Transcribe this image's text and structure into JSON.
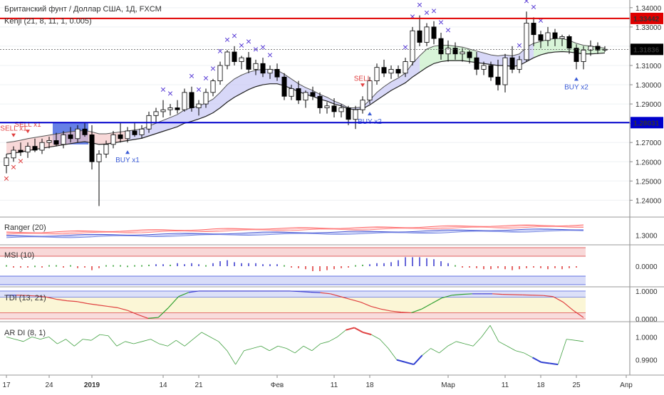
{
  "colors": {
    "up": "#ffffff",
    "down": "#000000",
    "resistance": "#e00000",
    "support": "#0000cc",
    "marker": "#5b3fd6",
    "sell": "#e04040",
    "buy": "#3a5bd6"
  },
  "chart_data": [
    {
      "type": "candlestick",
      "title": "Британский фунт / Доллар США, 1Д, FXCM",
      "indicator_label": "Kenji (21, 8, 11, 1, 0.005)",
      "ylim": [
        1.232,
        1.344
      ],
      "y_ticks": [
        "1.34000",
        "1.33000",
        "1.32000",
        "1.31000",
        "1.30000",
        "1.29000",
        "1.28000",
        "1.27000",
        "1.26000",
        "1.25000",
        "1.24000"
      ],
      "price_labels": [
        {
          "text": "1.33442",
          "value": 1.33442,
          "color": "#e00000"
        },
        {
          "text": "1.31836",
          "value": 1.31836,
          "color": "#000000"
        },
        {
          "text": "1.28031",
          "value": 1.28031,
          "color": "#0000cc"
        }
      ],
      "x_ticks": [
        {
          "label": "17",
          "index": 0
        },
        {
          "label": "24",
          "index": 6
        },
        {
          "label": "2019",
          "index": 12
        },
        {
          "label": "14",
          "index": 22
        },
        {
          "label": "21",
          "index": 27
        },
        {
          "label": "Фев",
          "index": 38
        },
        {
          "label": "11",
          "index": 46
        },
        {
          "label": "18",
          "index": 51
        },
        {
          "label": "Мар",
          "index": 62
        },
        {
          "label": "11",
          "index": 70
        },
        {
          "label": "18",
          "index": 75
        },
        {
          "label": "25",
          "index": 80
        },
        {
          "label": "Апр",
          "index": 87
        }
      ],
      "candles": [
        [
          1.258,
          1.264,
          1.254,
          1.262
        ],
        [
          1.262,
          1.268,
          1.26,
          1.266
        ],
        [
          1.266,
          1.27,
          1.263,
          1.265
        ],
        [
          1.265,
          1.27,
          1.262,
          1.268
        ],
        [
          1.268,
          1.272,
          1.265,
          1.266
        ],
        [
          1.266,
          1.272,
          1.264,
          1.27
        ],
        [
          1.27,
          1.273,
          1.267,
          1.271
        ],
        [
          1.271,
          1.275,
          1.268,
          1.269
        ],
        [
          1.269,
          1.276,
          1.267,
          1.274
        ],
        [
          1.274,
          1.278,
          1.27,
          1.272
        ],
        [
          1.272,
          1.279,
          1.27,
          1.277
        ],
        [
          1.277,
          1.28,
          1.273,
          1.274
        ],
        [
          1.274,
          1.279,
          1.256,
          1.26
        ],
        [
          1.26,
          1.266,
          1.237,
          1.264
        ],
        [
          1.264,
          1.271,
          1.262,
          1.269
        ],
        [
          1.269,
          1.276,
          1.267,
          1.274
        ],
        [
          1.274,
          1.28,
          1.27,
          1.272
        ],
        [
          1.272,
          1.278,
          1.27,
          1.276
        ],
        [
          1.276,
          1.28,
          1.273,
          1.274
        ],
        [
          1.274,
          1.279,
          1.272,
          1.277
        ],
        [
          1.277,
          1.286,
          1.275,
          1.284
        ],
        [
          1.284,
          1.288,
          1.28,
          1.286
        ],
        [
          1.286,
          1.292,
          1.283,
          1.287
        ],
        [
          1.287,
          1.29,
          1.284,
          1.288
        ],
        [
          1.288,
          1.292,
          1.285,
          1.287
        ],
        [
          1.287,
          1.298,
          1.286,
          1.296
        ],
        [
          1.296,
          1.299,
          1.286,
          1.288
        ],
        [
          1.288,
          1.292,
          1.284,
          1.29
        ],
        [
          1.29,
          1.298,
          1.288,
          1.296
        ],
        [
          1.296,
          1.303,
          1.294,
          1.302
        ],
        [
          1.302,
          1.312,
          1.3,
          1.31
        ],
        [
          1.31,
          1.318,
          1.308,
          1.317
        ],
        [
          1.317,
          1.32,
          1.31,
          1.312
        ],
        [
          1.312,
          1.315,
          1.308,
          1.314
        ],
        [
          1.314,
          1.317,
          1.306,
          1.308
        ],
        [
          1.308,
          1.313,
          1.305,
          1.311
        ],
        [
          1.311,
          1.314,
          1.304,
          1.306
        ],
        [
          1.306,
          1.31,
          1.303,
          1.308
        ],
        [
          1.308,
          1.311,
          1.302,
          1.304
        ],
        [
          1.304,
          1.306,
          1.292,
          1.294
        ],
        [
          1.294,
          1.3,
          1.292,
          1.298
        ],
        [
          1.298,
          1.302,
          1.29,
          1.292
        ],
        [
          1.292,
          1.297,
          1.288,
          1.296
        ],
        [
          1.296,
          1.299,
          1.292,
          1.294
        ],
        [
          1.294,
          1.296,
          1.285,
          1.288
        ],
        [
          1.288,
          1.291,
          1.285,
          1.289
        ],
        [
          1.289,
          1.293,
          1.283,
          1.286
        ],
        [
          1.286,
          1.29,
          1.283,
          1.288
        ],
        [
          1.288,
          1.289,
          1.279,
          1.282
        ],
        [
          1.282,
          1.289,
          1.277,
          1.287
        ],
        [
          1.287,
          1.294,
          1.285,
          1.292
        ],
        [
          1.292,
          1.304,
          1.29,
          1.302
        ],
        [
          1.302,
          1.311,
          1.3,
          1.309
        ],
        [
          1.309,
          1.313,
          1.304,
          1.306
        ],
        [
          1.306,
          1.31,
          1.303,
          1.308
        ],
        [
          1.308,
          1.31,
          1.304,
          1.306
        ],
        [
          1.306,
          1.314,
          1.304,
          1.312
        ],
        [
          1.312,
          1.33,
          1.31,
          1.328
        ],
        [
          1.328,
          1.336,
          1.32,
          1.322
        ],
        [
          1.322,
          1.332,
          1.32,
          1.33
        ],
        [
          1.33,
          1.333,
          1.321,
          1.324
        ],
        [
          1.324,
          1.327,
          1.313,
          1.316
        ],
        [
          1.316,
          1.323,
          1.312,
          1.319
        ],
        [
          1.319,
          1.322,
          1.313,
          1.316
        ],
        [
          1.316,
          1.319,
          1.312,
          1.317
        ],
        [
          1.317,
          1.318,
          1.311,
          1.314
        ],
        [
          1.314,
          1.317,
          1.305,
          1.308
        ],
        [
          1.308,
          1.312,
          1.305,
          1.31
        ],
        [
          1.31,
          1.312,
          1.302,
          1.304
        ],
        [
          1.304,
          1.313,
          1.297,
          1.3
        ],
        [
          1.3,
          1.316,
          1.296,
          1.314
        ],
        [
          1.314,
          1.32,
          1.306,
          1.308
        ],
        [
          1.308,
          1.315,
          1.306,
          1.313
        ],
        [
          1.313,
          1.338,
          1.312,
          1.332
        ],
        [
          1.332,
          1.335,
          1.32,
          1.326
        ],
        [
          1.326,
          1.328,
          1.319,
          1.323
        ],
        [
          1.323,
          1.33,
          1.32,
          1.327
        ],
        [
          1.327,
          1.329,
          1.32,
          1.324
        ],
        [
          1.324,
          1.326,
          1.32,
          1.325
        ],
        [
          1.325,
          1.326,
          1.316,
          1.319
        ],
        [
          1.319,
          1.321,
          1.308,
          1.312
        ],
        [
          1.312,
          1.32,
          1.308,
          1.318
        ],
        [
          1.318,
          1.323,
          1.315,
          1.32
        ],
        [
          1.32,
          1.322,
          1.316,
          1.318
        ],
        [
          1.318,
          1.32,
          1.317,
          1.3184
        ]
      ],
      "kenji_upper": [
        1.27,
        1.2705,
        1.2712,
        1.272,
        1.2726,
        1.2732,
        1.2738,
        1.2744,
        1.275,
        1.2756,
        1.276,
        1.2762,
        1.2755,
        1.2745,
        1.2745,
        1.275,
        1.2755,
        1.276,
        1.2765,
        1.277,
        1.2785,
        1.28,
        1.2815,
        1.283,
        1.2845,
        1.287,
        1.288,
        1.289,
        1.2905,
        1.2925,
        1.296,
        1.3,
        1.303,
        1.305,
        1.3065,
        1.3075,
        1.308,
        1.308,
        1.3075,
        1.3055,
        1.303,
        1.3005,
        1.2985,
        1.297,
        1.295,
        1.2935,
        1.2915,
        1.29,
        1.288,
        1.288,
        1.2885,
        1.292,
        1.296,
        1.299,
        1.3015,
        1.3035,
        1.306,
        1.311,
        1.315,
        1.3185,
        1.32,
        1.3205,
        1.3205,
        1.32,
        1.3195,
        1.3185,
        1.3175,
        1.3165,
        1.3155,
        1.315,
        1.3155,
        1.315,
        1.316,
        1.3195,
        1.3215,
        1.3225,
        1.3235,
        1.324,
        1.324,
        1.323,
        1.3215,
        1.3205,
        1.32,
        1.3195,
        1.319
      ],
      "kenji_lower": [
        1.264,
        1.2645,
        1.265,
        1.2658,
        1.2664,
        1.267,
        1.2676,
        1.2682,
        1.2688,
        1.2694,
        1.27,
        1.2704,
        1.2698,
        1.269,
        1.2692,
        1.2698,
        1.2704,
        1.271,
        1.2716,
        1.2722,
        1.2734,
        1.2746,
        1.2758,
        1.277,
        1.2782,
        1.28,
        1.281,
        1.2822,
        1.2836,
        1.2854,
        1.288,
        1.291,
        1.2935,
        1.2955,
        1.2975,
        1.299,
        1.3,
        1.3005,
        1.3005,
        1.2995,
        1.298,
        1.2965,
        1.295,
        1.294,
        1.2925,
        1.2915,
        1.29,
        1.289,
        1.2875,
        1.287,
        1.2875,
        1.2895,
        1.292,
        1.2945,
        1.297,
        1.299,
        1.301,
        1.304,
        1.3065,
        1.309,
        1.311,
        1.312,
        1.3125,
        1.3125,
        1.3125,
        1.312,
        1.3115,
        1.311,
        1.3105,
        1.31,
        1.31,
        1.3095,
        1.31,
        1.312,
        1.314,
        1.3155,
        1.3165,
        1.317,
        1.3172,
        1.317,
        1.3165,
        1.316,
        1.316,
        1.3162,
        1.3165
      ],
      "resistance": 1.33442,
      "support": 1.28031,
      "last_price": 1.31836,
      "highlight_zone": {
        "from_index": 7,
        "to_index": 11,
        "y_from": 1.269,
        "y_to": 1.28
      },
      "x_markers": [
        0,
        1,
        2,
        22,
        23,
        26,
        27,
        28,
        29,
        30,
        31,
        32,
        33,
        34,
        35,
        36,
        37,
        56,
        57,
        58,
        59,
        60,
        61,
        62,
        72,
        73,
        74,
        75
      ],
      "signals": [
        {
          "label": "SELL x1",
          "type": "sell",
          "index": 1
        },
        {
          "label": "SELL x1",
          "type": "sell",
          "index": 3
        },
        {
          "label": "BUY x1",
          "type": "buy",
          "index": 17
        },
        {
          "label": "SELL",
          "type": "sell",
          "index": 50
        },
        {
          "label": "BUY x2",
          "type": "buy",
          "index": 51
        },
        {
          "label": "BUY x2",
          "type": "buy",
          "index": 80
        }
      ]
    },
    {
      "type": "line",
      "title": "Ranger (20)",
      "y_ticks": [
        "1.3000"
      ],
      "ylim": [
        1.28,
        1.34
      ],
      "series": [
        {
          "values": [
            1.304,
            1.306,
            1.308,
            1.31,
            1.312,
            1.314,
            1.315,
            1.316,
            1.318,
            1.32,
            1.321,
            1.322
          ]
        },
        {
          "values": [
            1.296,
            1.297,
            1.299,
            1.3,
            1.302,
            1.304,
            1.305,
            1.306,
            1.308,
            1.31,
            1.311,
            1.312
          ]
        }
      ]
    },
    {
      "type": "bar",
      "title": "MSI (10)",
      "y_ticks": [
        "0.0000"
      ],
      "ylim": [
        -1,
        1
      ],
      "values": [
        0.1,
        -0.1,
        -0.15,
        -0.1,
        0.05,
        -0.05,
        0.1,
        0.1,
        -0.1,
        0.1,
        -0.2,
        -0.1,
        -0.4,
        -0.2,
        0.1,
        0.1,
        0.1,
        0.05,
        0.1,
        0.1,
        0.15,
        0.2,
        0.2,
        0.15,
        0.3,
        0.2,
        0.3,
        0.2,
        0.1,
        0.3,
        0.5,
        0.6,
        0.4,
        0.3,
        0.3,
        0.3,
        0.2,
        0.2,
        0.2,
        0.1,
        -0.1,
        -0.2,
        -0.3,
        -0.5,
        -0.5,
        -0.4,
        -0.3,
        -0.2,
        -0.1,
        0.1,
        0.15,
        0.2,
        0.3,
        0.3,
        0.4,
        0.6,
        0.9,
        0.9,
        0.9,
        0.8,
        0.7,
        0.5,
        0.3,
        0.1,
        -0.1,
        -0.1,
        -0.2,
        -0.3,
        -0.3,
        -0.2,
        -0.3,
        -0.4,
        -0.3,
        -0.2,
        -0.1,
        -0.2,
        -0.3,
        -0.2,
        -0.3,
        -0.2,
        -0.1
      ]
    },
    {
      "type": "line",
      "title": "TDI (13, 21)",
      "y_ticks": [
        "1.0000",
        "0.0000"
      ],
      "ylim": [
        -0.05,
        1.1
      ],
      "values": [
        0.85,
        0.85,
        0.84,
        0.82,
        0.78,
        0.7,
        0.65,
        0.62,
        0.55,
        0.5,
        0.45,
        0.4,
        0.3,
        0.15,
        0.02,
        0.05,
        0.4,
        0.8,
        0.95,
        1.0,
        1.0,
        1.0,
        1.0,
        1.0,
        1.0,
        1.0,
        1.0,
        1.0,
        1.0,
        0.98,
        0.96,
        0.94,
        0.9,
        0.8,
        0.7,
        0.6,
        0.45,
        0.35,
        0.28,
        0.24,
        0.22,
        0.35,
        0.55,
        0.75,
        0.85,
        0.88,
        0.9,
        0.9,
        0.9,
        0.88,
        0.87,
        0.86,
        0.85,
        0.84,
        0.8,
        0.6,
        0.3,
        0.05
      ]
    },
    {
      "type": "line",
      "title": "AR DI (8, 1)",
      "y_ticks": [
        "1.0000",
        "0.9900"
      ],
      "ylim": [
        0.984,
        1.006
      ],
      "values": [
        1.0,
        0.999,
        0.998,
        1.0,
        0.999,
        1.0,
        0.997,
        0.999,
        0.996,
        0.999,
        0.9985,
        1.001,
        1.0005,
        0.996,
        0.998,
        0.997,
        0.998,
        0.999,
        0.997,
        0.996,
        0.9985,
        0.996,
        0.999,
        1.002,
        1.0,
        0.998,
        0.994,
        0.988,
        0.994,
        0.995,
        0.996,
        0.994,
        0.996,
        0.995,
        0.993,
        0.996,
        0.994,
        0.997,
        0.998,
        1.0,
        1.003,
        1.004,
        1.002,
        1.001,
        0.999,
        0.995,
        0.99,
        0.989,
        0.988,
        0.992,
        0.995,
        0.993,
        0.996,
        0.998,
        0.997,
        0.996,
        1.0,
        1.005,
        0.998,
        0.996,
        0.994,
        0.993,
        0.991,
        0.989,
        0.9885,
        0.988,
        0.999,
        0.9985,
        0.998
      ]
    }
  ]
}
